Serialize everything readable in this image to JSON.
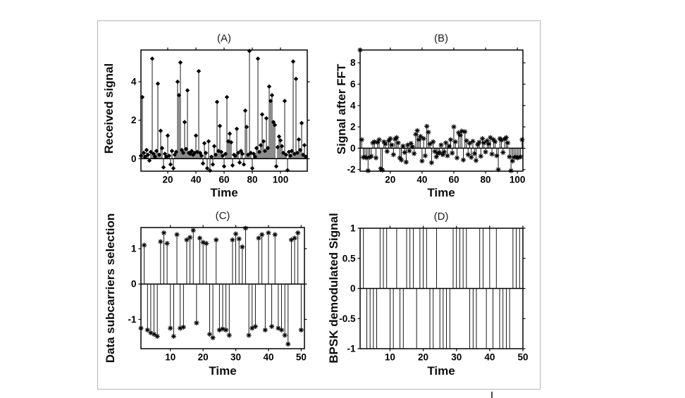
{
  "figure": {
    "background": "#ffffff",
    "border_color": "#b6b6b6",
    "line_color": "#000000",
    "text_color": "#0d0d0d"
  },
  "chart_data": [
    {
      "id": "A",
      "type": "stem",
      "title": "(A)",
      "xlabel": "Time",
      "ylabel": "Received signal",
      "marker": "diamond",
      "grid": false,
      "legend": null,
      "x_start": 1,
      "xlim": [
        1,
        119
      ],
      "ylim": [
        -0.65,
        5.65
      ],
      "xticks": [
        20,
        40,
        60,
        80,
        100
      ],
      "yticks": [
        0,
        2,
        4
      ],
      "values": [
        0.15,
        3.2,
        0.3,
        0.1,
        0.45,
        0.2,
        -0.1,
        0.35,
        5.2,
        0.25,
        0.1,
        0.4,
        3.9,
        0.2,
        1.45,
        0.55,
        -0.45,
        0.25,
        0.1,
        1.2,
        0.15,
        -0.3,
        0.4,
        -0.5,
        0.2,
        0.35,
        4.0,
        3.3,
        5.0,
        0.45,
        0.3,
        1.9,
        0.5,
        3.55,
        0.3,
        0.25,
        0.4,
        0.2,
        0.3,
        1.2,
        0.35,
        4.55,
        0.3,
        0.15,
        -0.25,
        0.8,
        0.3,
        -0.5,
        0.9,
        -0.62,
        0.1,
        -0.3,
        0.65,
        0.2,
        2.95,
        0.4,
        1.7,
        0.35,
        0.15,
        -0.4,
        0.25,
        3.2,
        0.9,
        1.3,
        0.85,
        -0.35,
        0.2,
        0.15,
        1.55,
        0.3,
        -0.2,
        0.4,
        0.25,
        -0.3,
        2.5,
        1.65,
        0.2,
        5.6,
        0.3,
        -0.5,
        0.25,
        0.1,
        0.55,
        5.2,
        0.35,
        0.7,
        2.3,
        0.9,
        0.4,
        2.1,
        0.55,
        3.75,
        3.0,
        3.3,
        1.9,
        1.75,
        -0.4,
        0.6,
        1.15,
        0.95,
        0.65,
        0.3,
        3.0,
        0.2,
        -0.6,
        0.35,
        0.15,
        0.4,
        5.05,
        0.25,
        4.15,
        0.3,
        1.0,
        0.45,
        1.85,
        0.2,
        0.7,
        0.1
      ]
    },
    {
      "id": "B",
      "type": "stem",
      "title": "(B)",
      "xlabel": "Time",
      "ylabel": "Signal after FFT",
      "marker": "asterisk",
      "grid": false,
      "legend": null,
      "x_start": 1,
      "xlim": [
        1,
        103.5
      ],
      "ylim": [
        -2.15,
        9.2
      ],
      "xticks": [
        20,
        40,
        60,
        80,
        100
      ],
      "yticks": [
        -2,
        0,
        2,
        4,
        6,
        8
      ],
      "values": [
        9.2,
        0.8,
        -0.85,
        -0.8,
        -0.9,
        -2.1,
        -0.85,
        -0.75,
        0.5,
        0.6,
        -0.9,
        0.55,
        0.8,
        -1.9,
        -2.05,
        0.6,
        0.4,
        -0.3,
        0.7,
        0.9,
        0.3,
        -0.6,
        0.85,
        1.0,
        0.5,
        -0.9,
        -1.1,
        0.2,
        -0.4,
        -1.3,
        0.3,
        -0.25,
        0.45,
        0.15,
        -0.5,
        1.3,
        1.65,
        0.8,
        1.1,
        -1.2,
        0.9,
        -0.7,
        2.05,
        1.5,
        0.4,
        -1.35,
        0.6,
        -0.3,
        -0.8,
        -0.5,
        -0.4,
        0.3,
        -0.6,
        -0.35,
        0.5,
        -0.7,
        0.2,
        0.8,
        -0.45,
        2.0,
        0.6,
        -0.9,
        1.45,
        1.2,
        1.6,
        -1.1,
        1.55,
        0.7,
        -0.6,
        0.45,
        -0.85,
        0.65,
        -0.5,
        -1.15,
        0.35,
        0.55,
        -0.75,
        0.9,
        0.5,
        -0.35,
        0.7,
        0.4,
        1.0,
        -0.55,
        0.8,
        0.6,
        -0.7,
        -2.0,
        0.9,
        0.75,
        -0.4,
        0.85,
        1.0,
        0.5,
        -0.8,
        -2.1,
        -1.2,
        -0.85,
        -0.8,
        -0.9,
        -0.85,
        -0.8,
        0.8
      ]
    },
    {
      "id": "C",
      "type": "stem",
      "title": "(C)",
      "xlabel": "Time",
      "ylabel": "Data subcarriers selection",
      "marker": "asterisk",
      "grid": false,
      "legend": null,
      "x_start": 1,
      "xlim": [
        1,
        51
      ],
      "ylim": [
        -1.83,
        1.6
      ],
      "xticks": [
        10,
        20,
        30,
        40,
        50
      ],
      "yticks": [
        -1,
        0,
        1
      ],
      "values": [
        -1.25,
        1.1,
        -1.3,
        -1.38,
        -1.42,
        -1.48,
        1.2,
        1.45,
        1.15,
        -1.25,
        -1.48,
        1.4,
        -1.25,
        -1.22,
        1.25,
        1.32,
        1.52,
        -1.1,
        1.3,
        1.18,
        1.15,
        -1.42,
        -1.52,
        1.25,
        -1.3,
        -1.27,
        -1.3,
        -1.45,
        1.25,
        1.42,
        1.28,
        1.05,
        1.58,
        -1.45,
        -1.25,
        -1.2,
        1.3,
        1.4,
        -1.3,
        1.45,
        -1.2,
        1.4,
        -1.25,
        -1.3,
        -1.45,
        -1.7,
        1.25,
        1.3,
        1.45,
        -1.3
      ]
    },
    {
      "id": "D",
      "type": "stem",
      "title": "(D)",
      "xlabel": "Time",
      "ylabel": "BPSK demodulated Signal",
      "marker": "none",
      "grid": false,
      "legend": null,
      "x_start": 1,
      "xlim": [
        1,
        50
      ],
      "ylim": [
        -1,
        1
      ],
      "xticks": [
        10,
        20,
        30,
        40,
        50
      ],
      "yticks": [
        -1,
        -0.5,
        0,
        0.5,
        1
      ],
      "values": [
        -1,
        1,
        -1,
        -1,
        -1,
        -1,
        1,
        1,
        1,
        -1,
        -1,
        1,
        -1,
        -1,
        1,
        1,
        1,
        -1,
        1,
        1,
        1,
        -1,
        -1,
        1,
        -1,
        -1,
        -1,
        -1,
        1,
        1,
        1,
        1,
        1,
        -1,
        -1,
        -1,
        1,
        1,
        -1,
        1,
        -1,
        1,
        -1,
        -1,
        -1,
        -1,
        1,
        1,
        1,
        -1
      ]
    }
  ]
}
